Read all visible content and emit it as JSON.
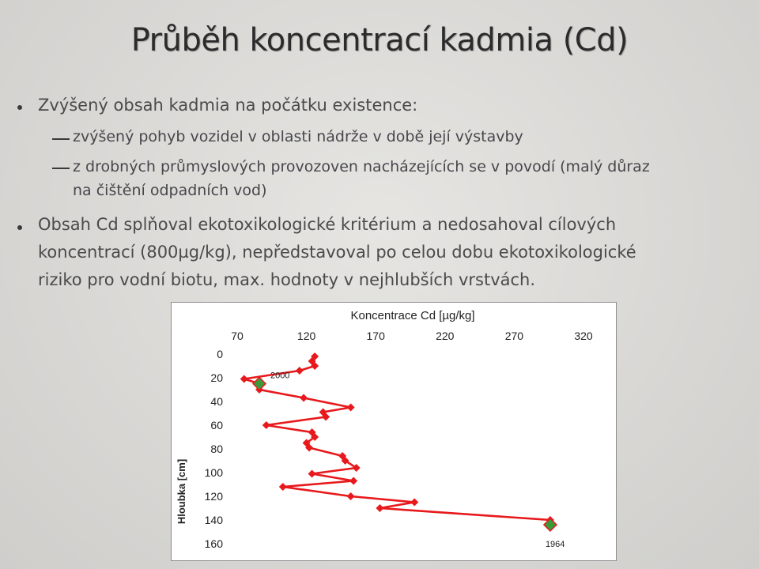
{
  "slide": {
    "title": "Průběh koncentrací kadmia (Cd)",
    "bullet1": "Zvýšený obsah kadmia na počátku existence:",
    "sub1": "zvýšený pohyb vozidel v oblasti nádrže v době její výstavby",
    "sub2_line1": "z drobných průmyslových provozoven nacházejících se v povodí (malý důraz",
    "sub2_line2": "na čištění odpadních vod)",
    "bullet2_line1": "Obsah Cd splňoval ekotoxikologické kritérium a nedosahoval cílových",
    "bullet2_line2": "koncentrací (800µg/kg), nepředstavoval po celou dobu ekotoxikologické",
    "bullet2_line3": "riziko pro vodní biotu, max. hodnoty v nejhlubších vrstvách."
  },
  "colors": {
    "series": "#e8191c",
    "marker_special": "#3a9a3a"
  },
  "chart_data": {
    "type": "line",
    "title": "Koncentrace Cd [µg/kg]",
    "xlabel": "Koncentrace Cd [µg/kg]",
    "ylabel": "Hloubka [cm]",
    "xlim": [
      70,
      320
    ],
    "ylim": [
      0,
      160
    ],
    "y_inverted": true,
    "x_axis_position": "top",
    "x_ticks": [
      "70",
      "120",
      "170",
      "220",
      "270",
      "320"
    ],
    "y_ticks": [
      "0",
      "20",
      "40",
      "60",
      "80",
      "100",
      "120",
      "140",
      "160"
    ],
    "series": [
      {
        "x": [
          126,
          124,
          126,
          115,
          75,
          86,
          86,
          118,
          152,
          132,
          134,
          91,
          124,
          126,
          120,
          122,
          146,
          148,
          156,
          124,
          154,
          103,
          152,
          198,
          173,
          296,
          296
        ],
        "y": [
          2,
          6,
          10,
          14,
          21,
          25,
          30,
          37,
          45,
          49,
          53,
          60,
          66,
          70,
          75,
          79,
          86,
          90,
          96,
          101,
          107,
          112,
          120,
          125,
          130,
          140,
          144
        ]
      }
    ],
    "special_points": [
      {
        "x": 86,
        "y": 25,
        "label": "2000"
      },
      {
        "x": 296,
        "y": 144,
        "label": "1964"
      }
    ]
  }
}
